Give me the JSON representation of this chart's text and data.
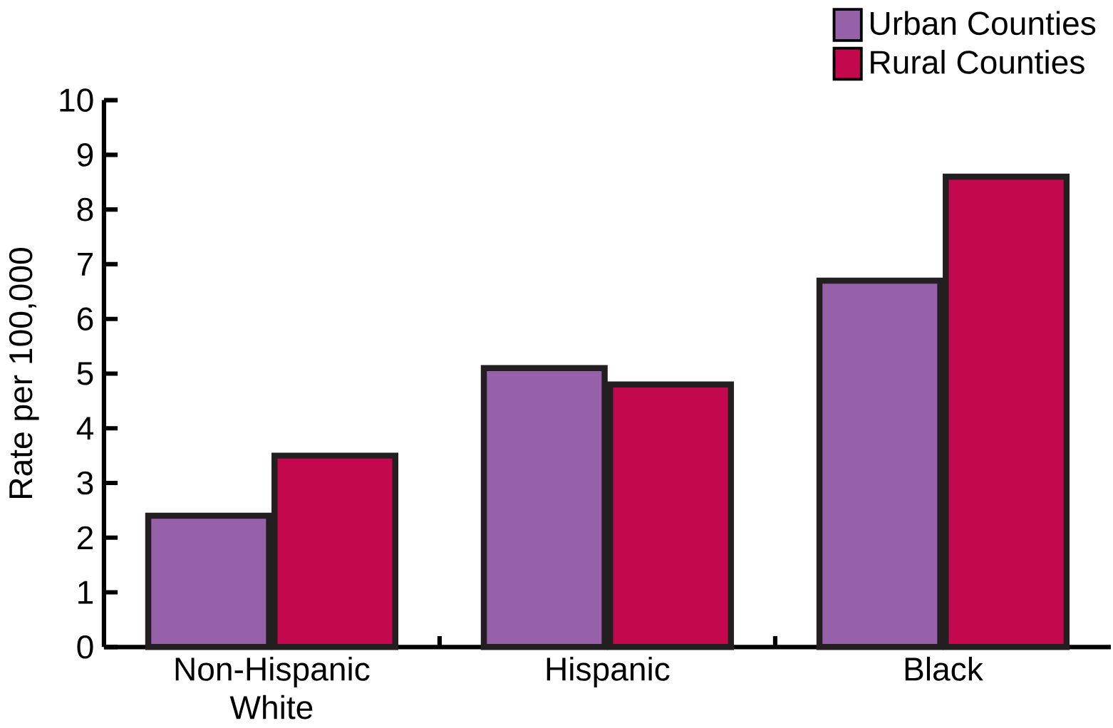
{
  "chart_data": {
    "type": "bar",
    "ylabel": "Rate per 100,000",
    "categories": [
      "Non-Hispanic White",
      "Hispanic",
      "Black"
    ],
    "series": [
      {
        "name": "Urban Counties",
        "color": "#9661a8",
        "values": [
          2.4,
          5.1,
          6.7
        ]
      },
      {
        "name": "Rural Counties",
        "color": "#c4084e",
        "values": [
          3.5,
          4.8,
          8.6
        ]
      }
    ],
    "ylim": [
      0,
      10
    ],
    "yticks": [
      0,
      1,
      2,
      3,
      4,
      5,
      6,
      7,
      8,
      9,
      10
    ],
    "grid": false,
    "legend": "top right"
  }
}
